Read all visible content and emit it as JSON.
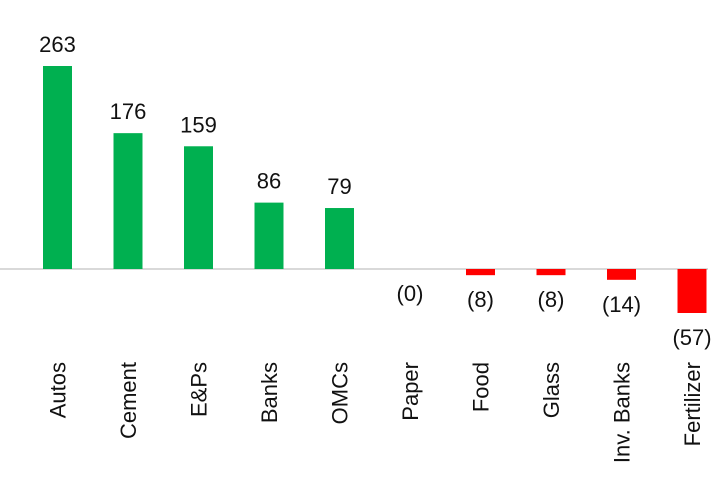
{
  "chart_data": {
    "type": "bar",
    "title": "",
    "xlabel": "",
    "ylabel": "",
    "categories": [
      "Autos",
      "Cement",
      "E&Ps",
      "Banks",
      "OMCs",
      "Paper",
      "Food",
      "Glass",
      "Inv. Banks",
      "Fertilizer"
    ],
    "values": [
      263,
      176,
      159,
      86,
      79,
      0,
      -8,
      -8,
      -14,
      -57
    ],
    "data_labels": [
      "263",
      "176",
      "159",
      "86",
      "79",
      "(0)",
      "(8)",
      "(8)",
      "(14)",
      "(57)"
    ],
    "ylim": [
      -57,
      263
    ],
    "grid": false,
    "legend": "none",
    "colors": {
      "positive": "#00b050",
      "negative": "#ff0000",
      "baseline": "#d9d9d9"
    }
  }
}
